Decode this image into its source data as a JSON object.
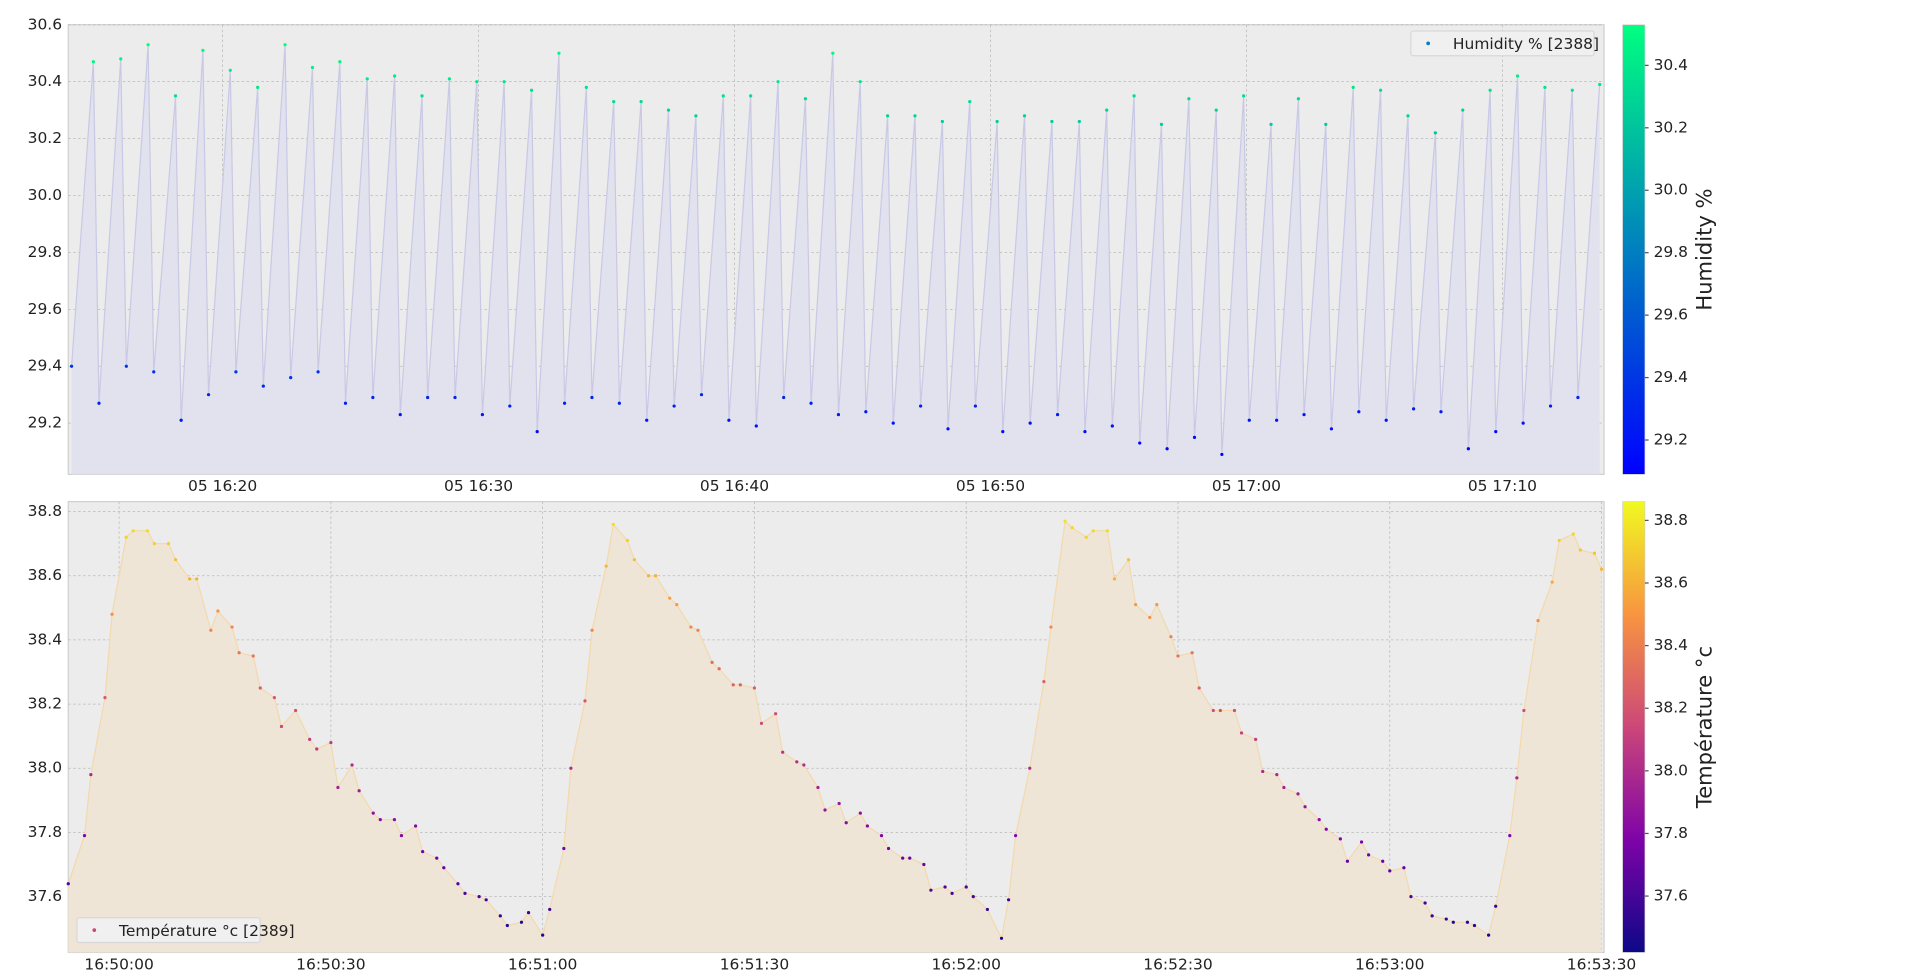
{
  "chart_data": [
    {
      "type": "scatter",
      "legend_loc": "upper right",
      "colormap": "winter",
      "colorbar_label": "Humidity %",
      "line_color": "#c9c9e6",
      "fill_color": "#e2e2ee",
      "grid": true,
      "xlim": [
        973.97,
        1033.97
      ],
      "xticks": [
        {
          "value": 980,
          "label": "05 16:20"
        },
        {
          "value": 990,
          "label": "05 16:30"
        },
        {
          "value": 1000,
          "label": "05 16:40"
        },
        {
          "value": 1010,
          "label": "05 16:50"
        },
        {
          "value": 1020,
          "label": "05 17:00"
        },
        {
          "value": 1030,
          "label": "05 17:10"
        }
      ],
      "ylim": [
        29.02,
        30.6
      ],
      "yticks": [
        29.2,
        29.4,
        29.6,
        29.8,
        {
          "value": 30.0,
          "label": "30.0"
        },
        30.2,
        30.4,
        30.6
      ],
      "clim": [
        29.09,
        30.53
      ],
      "cticks": [
        29.2,
        29.4,
        29.6,
        29.8,
        {
          "value": 30.0,
          "label": "30.0"
        },
        30.2,
        30.4
      ],
      "x": [
        974.1,
        974.95,
        975.17,
        976.02,
        976.24,
        977.09,
        977.31,
        978.16,
        978.38,
        979.23,
        979.45,
        980.3,
        980.52,
        981.37,
        981.59,
        982.44,
        982.66,
        983.51,
        983.73,
        984.58,
        984.8,
        985.65,
        985.87,
        986.72,
        986.94,
        987.79,
        988.01,
        988.86,
        989.08,
        989.93,
        990.15,
        991.0,
        991.22,
        992.07,
        992.29,
        993.14,
        993.36,
        994.21,
        994.43,
        995.28,
        995.5,
        996.35,
        996.57,
        997.42,
        997.64,
        998.49,
        998.71,
        999.56,
        999.78,
        1000.63,
        1000.85,
        1001.7,
        1001.92,
        1002.77,
        1002.99,
        1003.84,
        1004.06,
        1004.91,
        1005.13,
        1005.98,
        1006.2,
        1007.05,
        1007.27,
        1008.12,
        1008.34,
        1009.19,
        1009.41,
        1010.26,
        1010.48,
        1011.33,
        1011.55,
        1012.4,
        1012.62,
        1013.47,
        1013.69,
        1014.54,
        1014.76,
        1015.61,
        1015.83,
        1016.68,
        1016.9,
        1017.75,
        1017.97,
        1018.82,
        1019.04,
        1019.89,
        1020.11,
        1020.96,
        1021.18,
        1022.03,
        1022.25,
        1023.1,
        1023.32,
        1024.17,
        1024.39,
        1025.24,
        1025.46,
        1026.31,
        1026.53,
        1027.38,
        1027.6,
        1028.45,
        1028.67,
        1029.52,
        1029.74,
        1030.59,
        1030.81,
        1031.66,
        1031.88,
        1032.73,
        1032.95,
        1033.8
      ],
      "series": [
        {
          "name": "Humidity % [2388]",
          "values": [
            29.4,
            30.47,
            29.27,
            30.48,
            29.4,
            30.53,
            29.38,
            30.35,
            29.21,
            30.51,
            29.3,
            30.44,
            29.38,
            30.38,
            29.33,
            30.53,
            29.36,
            30.45,
            29.38,
            30.47,
            29.27,
            30.41,
            29.29,
            30.42,
            29.23,
            30.35,
            29.29,
            30.41,
            29.29,
            30.4,
            29.23,
            30.4,
            29.26,
            30.37,
            29.17,
            30.5,
            29.27,
            30.38,
            29.29,
            30.33,
            29.27,
            30.33,
            29.21,
            30.3,
            29.26,
            30.28,
            29.3,
            30.35,
            29.21,
            30.35,
            29.19,
            30.4,
            29.29,
            30.34,
            29.27,
            30.5,
            29.23,
            30.4,
            29.24,
            30.28,
            29.2,
            30.28,
            29.26,
            30.26,
            29.18,
            30.33,
            29.26,
            30.26,
            29.17,
            30.28,
            29.2,
            30.26,
            29.23,
            30.26,
            29.17,
            30.3,
            29.19,
            30.35,
            29.13,
            30.25,
            29.11,
            30.34,
            29.15,
            30.3,
            29.09,
            30.35,
            29.21,
            30.25,
            29.21,
            30.34,
            29.23,
            30.25,
            29.18,
            30.38,
            29.24,
            30.37,
            29.21,
            30.28,
            29.25,
            30.22,
            29.24,
            30.3,
            29.11,
            30.37,
            29.17,
            30.42,
            29.2,
            30.38,
            29.26,
            30.37,
            29.29,
            30.39
          ]
        }
      ]
    },
    {
      "type": "scatter",
      "legend_loc": "lower left",
      "colormap": "plasma",
      "colorbar_label": "Température °c",
      "line_color": "#f3d9ad",
      "fill_color": "#efe5d6",
      "grid": true,
      "xlim": [
        60592.8,
        60810.35
      ],
      "xticks": [
        {
          "value": 60600,
          "label": "16:50:00"
        },
        {
          "value": 60630,
          "label": "16:50:30"
        },
        {
          "value": 60660,
          "label": "16:51:00"
        },
        {
          "value": 60690,
          "label": "16:51:30"
        },
        {
          "value": 60720,
          "label": "16:52:00"
        },
        {
          "value": 60750,
          "label": "16:52:30"
        },
        {
          "value": 60780,
          "label": "16:53:00"
        },
        {
          "value": 60810,
          "label": "16:53:30"
        }
      ],
      "ylim": [
        37.426,
        38.831
      ],
      "yticks": [
        37.6,
        37.8,
        {
          "value": 38.0,
          "label": "38.0"
        },
        38.2,
        38.4,
        38.6,
        38.8
      ],
      "clim": [
        37.42,
        38.86
      ],
      "cticks": [
        37.6,
        37.8,
        {
          "value": 38.0,
          "label": "38.0"
        },
        38.2,
        38.4,
        38.6,
        38.8
      ],
      "x": [
        60592.8,
        60595.1,
        60596,
        60598,
        60599,
        60601,
        60602,
        60604,
        60605,
        60607,
        60608,
        60610,
        60611,
        60613,
        60614,
        60616,
        60617,
        60619,
        60620,
        60622,
        60623,
        60625,
        60627,
        60628,
        60630,
        60631,
        60633,
        60634,
        60636,
        60637,
        60639,
        60640,
        60642,
        60643,
        60645,
        60646,
        60648,
        60649,
        60651,
        60652,
        60654,
        60655,
        60657,
        60658,
        60660,
        60661,
        60663,
        60664,
        60666,
        60667,
        60669,
        60670,
        60672,
        60673,
        60675,
        60676,
        60678,
        60679,
        60681,
        60682,
        60684,
        60685,
        60687,
        60688,
        60690,
        60691,
        60693,
        60694,
        60696,
        60697,
        60699,
        60700,
        60702,
        60703,
        60705,
        60706,
        60708,
        60709,
        60711,
        60712,
        60714,
        60715,
        60717,
        60718,
        60720,
        60721,
        60723,
        60725,
        60726,
        60727,
        60729,
        60731,
        60732,
        60734,
        60735,
        60737,
        60738,
        60740,
        60741,
        60743,
        60744,
        60746,
        60747,
        60749,
        60750,
        60752,
        60753,
        60755,
        60756,
        60758,
        60759,
        60761,
        60762,
        60764,
        60765,
        60767,
        60768,
        60770,
        60771,
        60773,
        60774,
        60776,
        60777,
        60779,
        60780,
        60782,
        60783,
        60785,
        60786,
        60788,
        60789,
        60791,
        60792,
        60794,
        60795,
        60797,
        60798,
        60799,
        60801,
        60803,
        60804,
        60806,
        60807,
        60809,
        60810
      ],
      "series": [
        {
          "name": "Température °c [2389]",
          "values": [
            37.64,
            37.79,
            37.98,
            38.22,
            38.48,
            38.72,
            38.74,
            38.74,
            38.7,
            38.7,
            38.65,
            38.59,
            38.59,
            38.43,
            38.49,
            38.44,
            38.36,
            38.35,
            38.25,
            38.22,
            38.13,
            38.18,
            38.09,
            38.06,
            38.08,
            37.94,
            38.01,
            37.93,
            37.86,
            37.84,
            37.84,
            37.79,
            37.82,
            37.74,
            37.72,
            37.69,
            37.64,
            37.61,
            37.6,
            37.59,
            37.54,
            37.51,
            37.52,
            37.55,
            37.48,
            37.56,
            37.75,
            38.0,
            38.21,
            38.43,
            38.63,
            38.76,
            38.71,
            38.65,
            38.6,
            38.6,
            38.53,
            38.51,
            38.44,
            38.43,
            38.33,
            38.31,
            38.26,
            38.26,
            38.25,
            38.14,
            38.17,
            38.05,
            38.02,
            38.01,
            37.94,
            37.87,
            37.89,
            37.83,
            37.86,
            37.82,
            37.79,
            37.75,
            37.72,
            37.72,
            37.7,
            37.62,
            37.63,
            37.61,
            37.63,
            37.6,
            37.56,
            37.47,
            37.59,
            37.79,
            38.0,
            38.27,
            38.44,
            38.77,
            38.75,
            38.72,
            38.74,
            38.74,
            38.59,
            38.65,
            38.51,
            38.47,
            38.51,
            38.41,
            38.35,
            38.36,
            38.25,
            38.18,
            38.18,
            38.18,
            38.11,
            38.09,
            37.99,
            37.98,
            37.94,
            37.92,
            37.88,
            37.84,
            37.81,
            37.78,
            37.71,
            37.77,
            37.73,
            37.71,
            37.68,
            37.69,
            37.6,
            37.58,
            37.54,
            37.53,
            37.52,
            37.52,
            37.51,
            37.48,
            37.57,
            37.79,
            37.97,
            38.18,
            38.46,
            38.58,
            38.71,
            38.73,
            38.68,
            38.67,
            38.62
          ]
        }
      ]
    }
  ]
}
